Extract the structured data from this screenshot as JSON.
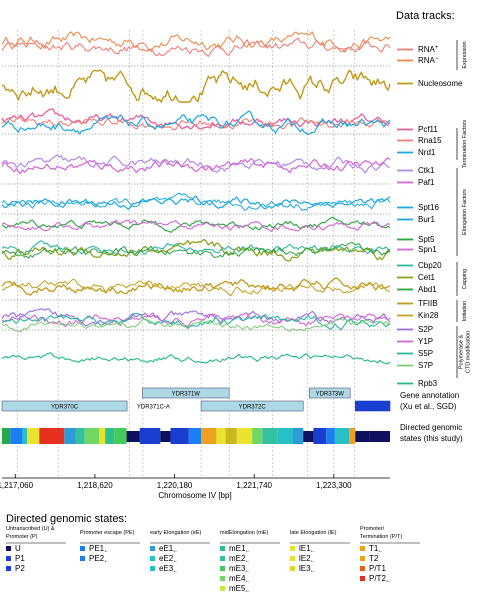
{
  "chart_data": {
    "type": "line",
    "title": "Data tracks:",
    "xlabel": "Chromosome IV [bp]",
    "x_range": [
      1216800,
      1224400
    ],
    "x_ticks": [
      {
        "value": 1217060,
        "label": "1,217,060"
      },
      {
        "value": 1218620,
        "label": "1,218,620"
      },
      {
        "value": 1220180,
        "label": "1,220,180"
      },
      {
        "value": 1221740,
        "label": "1,221,740"
      },
      {
        "value": 1223300,
        "label": "1,223,300"
      }
    ],
    "colors": {
      "orange": "#ef8a4a",
      "salmon": "#f07f7a",
      "gold": "#c09a1c",
      "pink": "#e8609a",
      "cyan": "#1ca8e0",
      "purple": "#b48ae6",
      "magenta": "#d464d8",
      "green": "#2aa43c",
      "olive": "#8aa224",
      "lightgreen": "#7ecb76",
      "teal": "#2ab7a0",
      "violet": "#9c6ae0",
      "olivegreen": "#96a81a",
      "ochre": "#c4a01c",
      "seagreen": "#22b888"
    },
    "tracks": [
      {
        "id": "t1",
        "labels": [
          {
            "name": "RNA",
            "sup": "+",
            "color": "salmon"
          },
          {
            "name": "RNA",
            "sup": "−",
            "color": "orange"
          }
        ]
      },
      {
        "id": "t2",
        "labels": [
          {
            "name": "Nucleosome",
            "color": "gold"
          }
        ]
      },
      {
        "id": "t3",
        "labels": [
          {
            "name": "Pcf11",
            "color": "pink"
          },
          {
            "name": "Rna15",
            "color": "salmon"
          },
          {
            "name": "Nrd1",
            "color": "cyan"
          }
        ]
      },
      {
        "id": "t4",
        "labels": [
          {
            "name": "Ctk1",
            "color": "purple"
          },
          {
            "name": "Paf1",
            "color": "magenta"
          }
        ]
      },
      {
        "id": "t5",
        "labels": [
          {
            "name": "Spt16",
            "color": "cyan"
          },
          {
            "name": "Bur1",
            "color": "cyan"
          }
        ]
      },
      {
        "id": "t6",
        "labels": [
          {
            "name": "Spt5",
            "color": "green"
          },
          {
            "name": "Spn1",
            "color": "magenta"
          }
        ]
      },
      {
        "id": "t7",
        "labels": [
          {
            "name": "Cbp20",
            "color": "teal"
          },
          {
            "name": "Cet1",
            "color": "olive"
          },
          {
            "name": "Abd1",
            "color": "green"
          }
        ]
      },
      {
        "id": "t8",
        "labels": [
          {
            "name": "TFIIB",
            "color": "gold"
          },
          {
            "name": "Kin28",
            "color": "ochre"
          }
        ]
      },
      {
        "id": "t9",
        "labels": [
          {
            "name": "S2P",
            "color": "violet"
          },
          {
            "name": "Y1P",
            "color": "magenta"
          },
          {
            "name": "S5P",
            "color": "teal"
          },
          {
            "name": "S7P",
            "color": "lightgreen"
          }
        ]
      },
      {
        "id": "t10",
        "labels": [
          {
            "name": "Rpb3",
            "color": "seagreen"
          }
        ]
      }
    ],
    "categories": [
      {
        "label": "Expression",
        "tracks": [
          "t1"
        ]
      },
      {
        "label": "Termination Factors",
        "tracks": [
          "t3"
        ]
      },
      {
        "label": "Elongation Factors",
        "tracks": [
          "t4",
          "t6"
        ]
      },
      {
        "label": "Capping",
        "tracks": [
          "t7"
        ]
      },
      {
        "label": "Initiation",
        "tracks": [
          "t8"
        ]
      },
      {
        "label": "Polymerase & CTD modification",
        "tracks": [
          "t9"
        ]
      }
    ],
    "genes": [
      {
        "name": "YDR370C",
        "start": 1216800,
        "end": 1219250
      },
      {
        "name": "YDR371W",
        "start": 1219550,
        "end": 1221250
      },
      {
        "name": "YDR371C-A",
        "start": 1219630,
        "end": 1219900
      },
      {
        "name": "YDR372C",
        "start": 1220700,
        "end": 1222700
      },
      {
        "name": "YDR373W",
        "start": 1222820,
        "end": 1223620
      },
      {
        "name": "",
        "start": 1223720,
        "end": 1224400
      }
    ],
    "gene_annotation_label": [
      "Gene annotation",
      "(Xu et al., SGD)"
    ],
    "states_label": [
      "Directed genomic",
      "states (this study)"
    ],
    "state_segments": [
      {
        "start": 1216800,
        "end": 1216960,
        "color": "#22aa44"
      },
      {
        "start": 1216960,
        "end": 1217200,
        "color": "#1a7ff0"
      },
      {
        "start": 1217200,
        "end": 1217290,
        "color": "#27c0c7"
      },
      {
        "start": 1217290,
        "end": 1217530,
        "color": "#e9e22e"
      },
      {
        "start": 1217530,
        "end": 1218020,
        "color": "#e83020"
      },
      {
        "start": 1218020,
        "end": 1218240,
        "color": "#2f9ad8"
      },
      {
        "start": 1218240,
        "end": 1218420,
        "color": "#33c2a0"
      },
      {
        "start": 1218420,
        "end": 1218700,
        "color": "#70d860"
      },
      {
        "start": 1218700,
        "end": 1218820,
        "color": "#e9e22e"
      },
      {
        "start": 1218820,
        "end": 1219000,
        "color": "#2fbf8a"
      },
      {
        "start": 1219000,
        "end": 1219240,
        "color": "#45c95a"
      },
      {
        "start": 1219240,
        "end": 1219500,
        "color": "#101060"
      },
      {
        "start": 1219500,
        "end": 1219900,
        "color": "#1a3fd0"
      },
      {
        "start": 1219900,
        "end": 1220100,
        "color": "#101060"
      },
      {
        "start": 1220100,
        "end": 1220460,
        "color": "#1a3fd0"
      },
      {
        "start": 1220460,
        "end": 1220700,
        "color": "#1a7ff0"
      },
      {
        "start": 1220700,
        "end": 1221000,
        "color": "#f0a020"
      },
      {
        "start": 1221000,
        "end": 1221180,
        "color": "#e9e22e"
      },
      {
        "start": 1221180,
        "end": 1221400,
        "color": "#c9b71e"
      },
      {
        "start": 1221400,
        "end": 1221700,
        "color": "#e9e22e"
      },
      {
        "start": 1221700,
        "end": 1221900,
        "color": "#70d860"
      },
      {
        "start": 1221900,
        "end": 1222200,
        "color": "#33c2a0"
      },
      {
        "start": 1222200,
        "end": 1222500,
        "color": "#27c0c7"
      },
      {
        "start": 1222500,
        "end": 1222700,
        "color": "#2f9ad8"
      },
      {
        "start": 1222700,
        "end": 1222900,
        "color": "#101060"
      },
      {
        "start": 1222900,
        "end": 1223150,
        "color": "#1a3fd0"
      },
      {
        "start": 1223150,
        "end": 1223320,
        "color": "#1a7ff0"
      },
      {
        "start": 1223320,
        "end": 1223600,
        "color": "#27c0c7"
      },
      {
        "start": 1223600,
        "end": 1223720,
        "color": "#f0a020"
      },
      {
        "start": 1223720,
        "end": 1224000,
        "color": "#101060"
      },
      {
        "start": 1224000,
        "end": 1224400,
        "color": "#101060"
      }
    ],
    "dashed_positions": [
      1217100,
      1217900,
      1219300,
      1219560,
      1220700,
      1221250,
      1222100,
      1222780,
      1223300,
      1223700
    ]
  },
  "directed_states": {
    "title": "Directed genomic states:",
    "groups": [
      {
        "heading": "Untranscribed (U) & Promoter (P)",
        "items": [
          {
            "label": "U",
            "color": "#101060"
          },
          {
            "label": "P1",
            "color": "#1a3fd0"
          },
          {
            "label": "P2",
            "color": "#1a3fd0"
          }
        ]
      },
      {
        "heading": "Promoter escape (PE)",
        "items": [
          {
            "label": "PE1",
            "sub": "+-",
            "color": "#1a7ff0"
          },
          {
            "label": "PE2",
            "sub": "+-",
            "color": "#1a7ff0"
          }
        ]
      },
      {
        "heading": "early Elongation (eE)",
        "items": [
          {
            "label": "eE1",
            "sub": "+-",
            "color": "#2f9ad8"
          },
          {
            "label": "eE2",
            "sub": "+-",
            "color": "#27c0c7"
          },
          {
            "label": "eE3",
            "sub": "+-",
            "color": "#27c0c7"
          }
        ]
      },
      {
        "heading": "midElongation (mE)",
        "items": [
          {
            "label": "mE1",
            "sub": "+-",
            "color": "#2fbf8a"
          },
          {
            "label": "mE2",
            "sub": "+-",
            "color": "#33c2a0"
          },
          {
            "label": "mE3",
            "sub": "+-",
            "color": "#45c95a"
          },
          {
            "label": "mE4",
            "sub": "+-",
            "color": "#70d860"
          },
          {
            "label": "mE5",
            "sub": "+-",
            "color": "#c8e840"
          }
        ]
      },
      {
        "heading": "late Elongation (lE)",
        "items": [
          {
            "label": "lE1",
            "sub": "+-",
            "color": "#e9e22e"
          },
          {
            "label": "lE2",
            "sub": "+-",
            "color": "#e9e22e"
          },
          {
            "label": "lE3",
            "sub": "+-",
            "color": "#e9d22e"
          }
        ]
      },
      {
        "heading": "Promoter/ Termination (P/T)",
        "items": [
          {
            "label": "T1",
            "sub": "+-",
            "color": "#f0a020"
          },
          {
            "label": "T2",
            "color": "#f0a020"
          },
          {
            "label": "P/T1",
            "color": "#e86018"
          },
          {
            "label": "P/T2",
            "sub": "+-",
            "color": "#e83020"
          }
        ]
      }
    ]
  }
}
